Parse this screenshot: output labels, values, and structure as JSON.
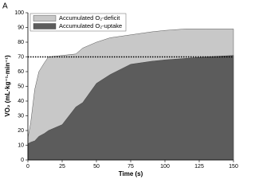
{
  "chart_data": {
    "type": "area",
    "panel_label": "A",
    "x_label": "Time (s)",
    "y_label": "VO₂ (mL·kg⁻¹·min⁻¹)",
    "x": [
      0,
      2,
      5,
      8,
      12,
      15,
      25,
      35,
      40,
      50,
      60,
      75,
      90,
      100,
      115,
      130,
      150
    ],
    "series": [
      {
        "name": "Accumulated O₂-deficit",
        "color": "#c8c8c8",
        "values": [
          15,
          25,
          48,
          60,
          66,
          70,
          71,
          72,
          76,
          80,
          83,
          85,
          87,
          88,
          89,
          89,
          89
        ]
      },
      {
        "name": "Accumulated O₂-uptake",
        "color": "#5c5c5c",
        "values": [
          11,
          12,
          13,
          16,
          18,
          20,
          24,
          36,
          39,
          52,
          58,
          65,
          67,
          68,
          69,
          70,
          71
        ]
      }
    ],
    "hline": 70,
    "xlim": [
      0,
      150
    ],
    "xticks": [
      0,
      25,
      50,
      75,
      100,
      125,
      150
    ],
    "ylim": [
      0,
      100
    ],
    "yticks": [
      0,
      10,
      20,
      30,
      40,
      50,
      60,
      70,
      80,
      90,
      100
    ]
  }
}
